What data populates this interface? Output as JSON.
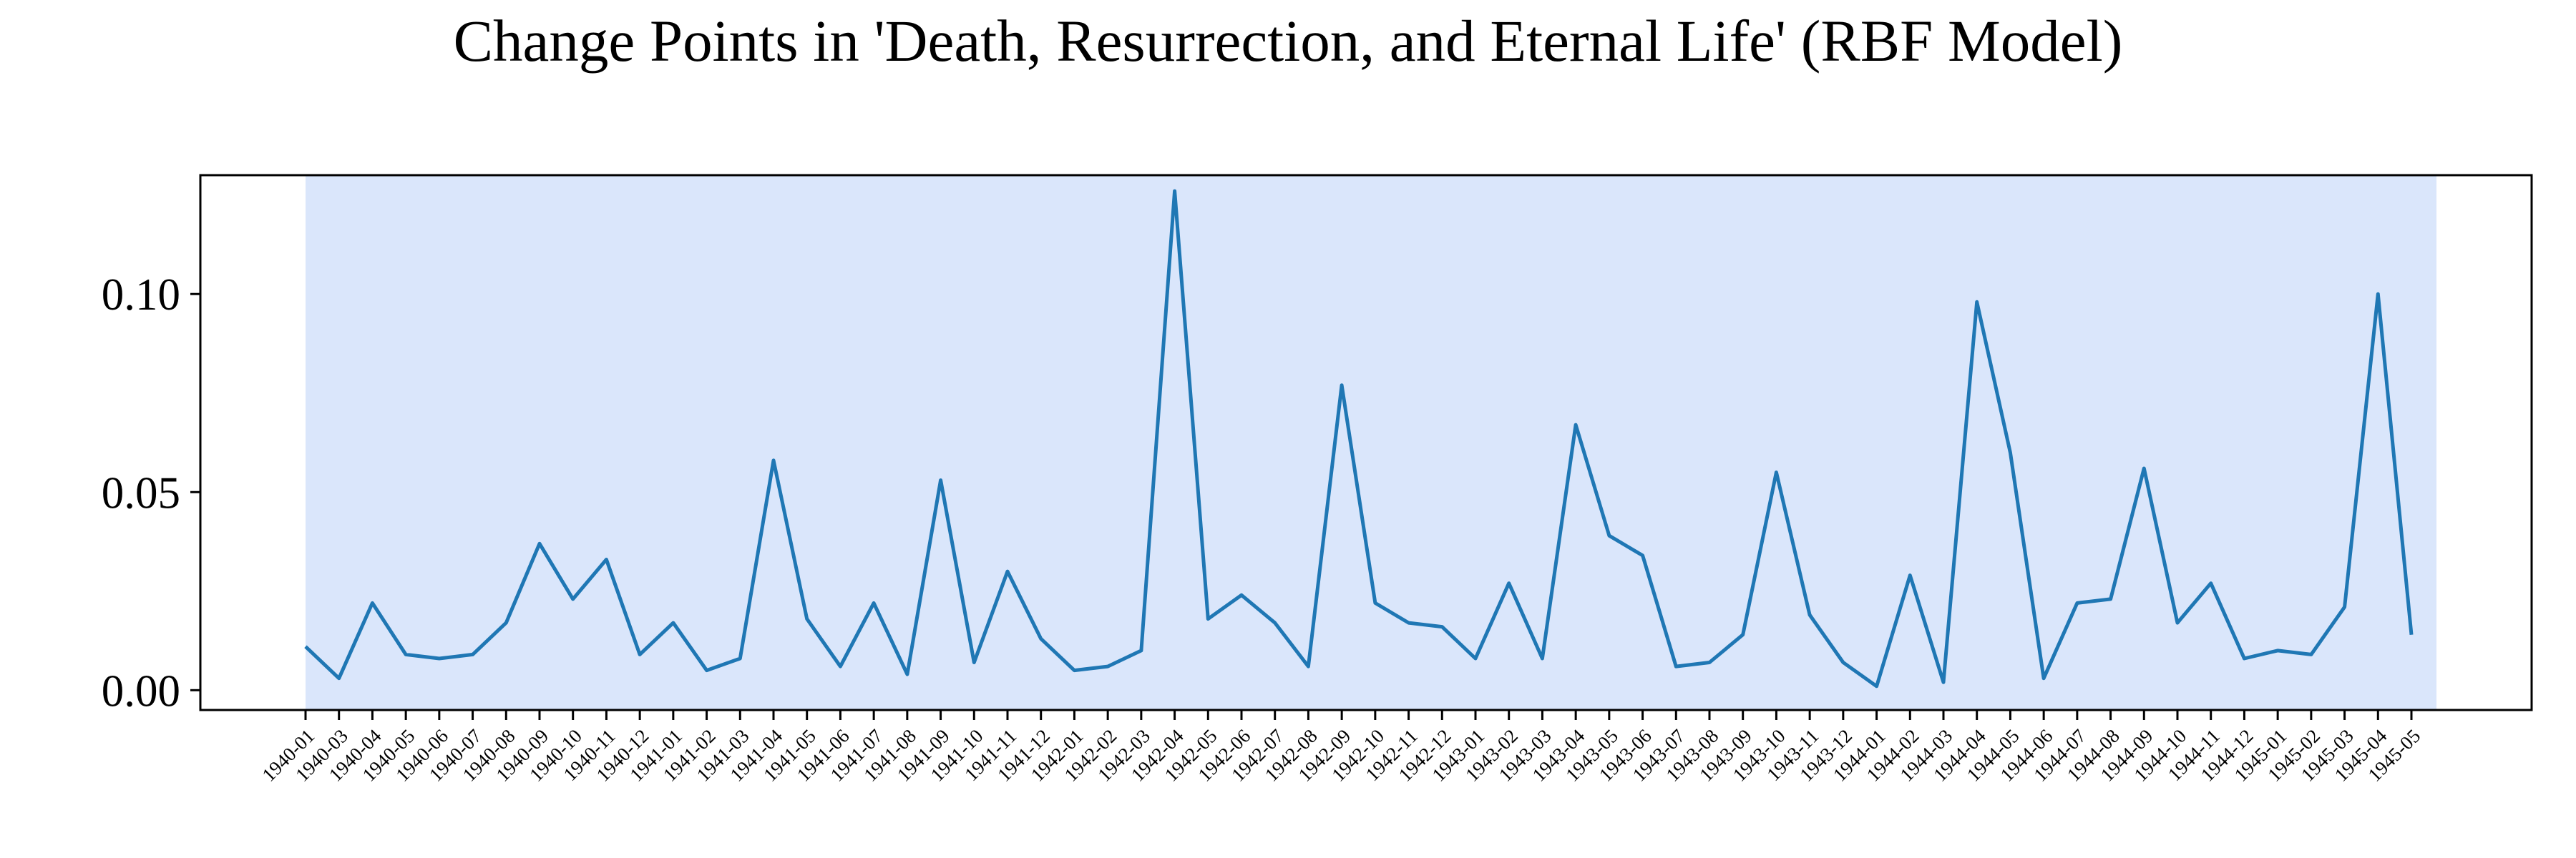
{
  "chart_data": {
    "type": "line",
    "title": "Change Points in 'Death, Resurrection, and Eternal Life' (RBF Model)",
    "xlabel": "",
    "ylabel": "",
    "ylim": [
      -0.005,
      0.13
    ],
    "yticks": [
      0.0,
      0.05,
      0.1
    ],
    "ytick_labels": [
      "0.00",
      "0.05",
      "0.10"
    ],
    "grid": false,
    "legend": "none",
    "colors": {
      "line": "#1f77b4",
      "shade": "#dae6fb",
      "axis": "#000000"
    },
    "x": [
      "1940-01",
      "1940-03",
      "1940-04",
      "1940-05",
      "1940-06",
      "1940-07",
      "1940-08",
      "1940-09",
      "1940-10",
      "1940-11",
      "1940-12",
      "1941-01",
      "1941-02",
      "1941-03",
      "1941-04",
      "1941-05",
      "1941-06",
      "1941-07",
      "1941-08",
      "1941-09",
      "1941-10",
      "1941-11",
      "1941-12",
      "1942-01",
      "1942-02",
      "1942-03",
      "1942-04",
      "1942-05",
      "1942-06",
      "1942-07",
      "1942-08",
      "1942-09",
      "1942-10",
      "1942-11",
      "1942-12",
      "1943-01",
      "1943-02",
      "1943-03",
      "1943-04",
      "1943-05",
      "1943-06",
      "1943-07",
      "1943-08",
      "1943-09",
      "1943-10",
      "1943-11",
      "1943-12",
      "1944-01",
      "1944-02",
      "1944-03",
      "1944-04",
      "1944-05",
      "1944-06",
      "1944-07",
      "1944-08",
      "1944-09",
      "1944-10",
      "1944-11",
      "1944-12",
      "1945-01",
      "1945-02",
      "1945-03",
      "1945-04",
      "1945-05"
    ],
    "series": [
      {
        "values": [
          0.011,
          0.003,
          0.022,
          0.009,
          0.008,
          0.009,
          0.017,
          0.037,
          0.023,
          0.033,
          0.009,
          0.017,
          0.005,
          0.008,
          0.058,
          0.018,
          0.006,
          0.022,
          0.004,
          0.053,
          0.007,
          0.03,
          0.013,
          0.005,
          0.006,
          0.01,
          0.126,
          0.018,
          0.024,
          0.017,
          0.006,
          0.077,
          0.022,
          0.017,
          0.016,
          0.008,
          0.027,
          0.008,
          0.067,
          0.039,
          0.034,
          0.006,
          0.007,
          0.014,
          0.055,
          0.019,
          0.007,
          0.001,
          0.029,
          0.002,
          0.098,
          0.06,
          0.003,
          0.022,
          0.023,
          0.056,
          0.017,
          0.027,
          0.008,
          0.01,
          0.009,
          0.021,
          0.1,
          0.014
        ]
      }
    ],
    "shaded_regions": [
      {
        "x_start": "1940-01",
        "x_end": "1945-05"
      }
    ]
  }
}
